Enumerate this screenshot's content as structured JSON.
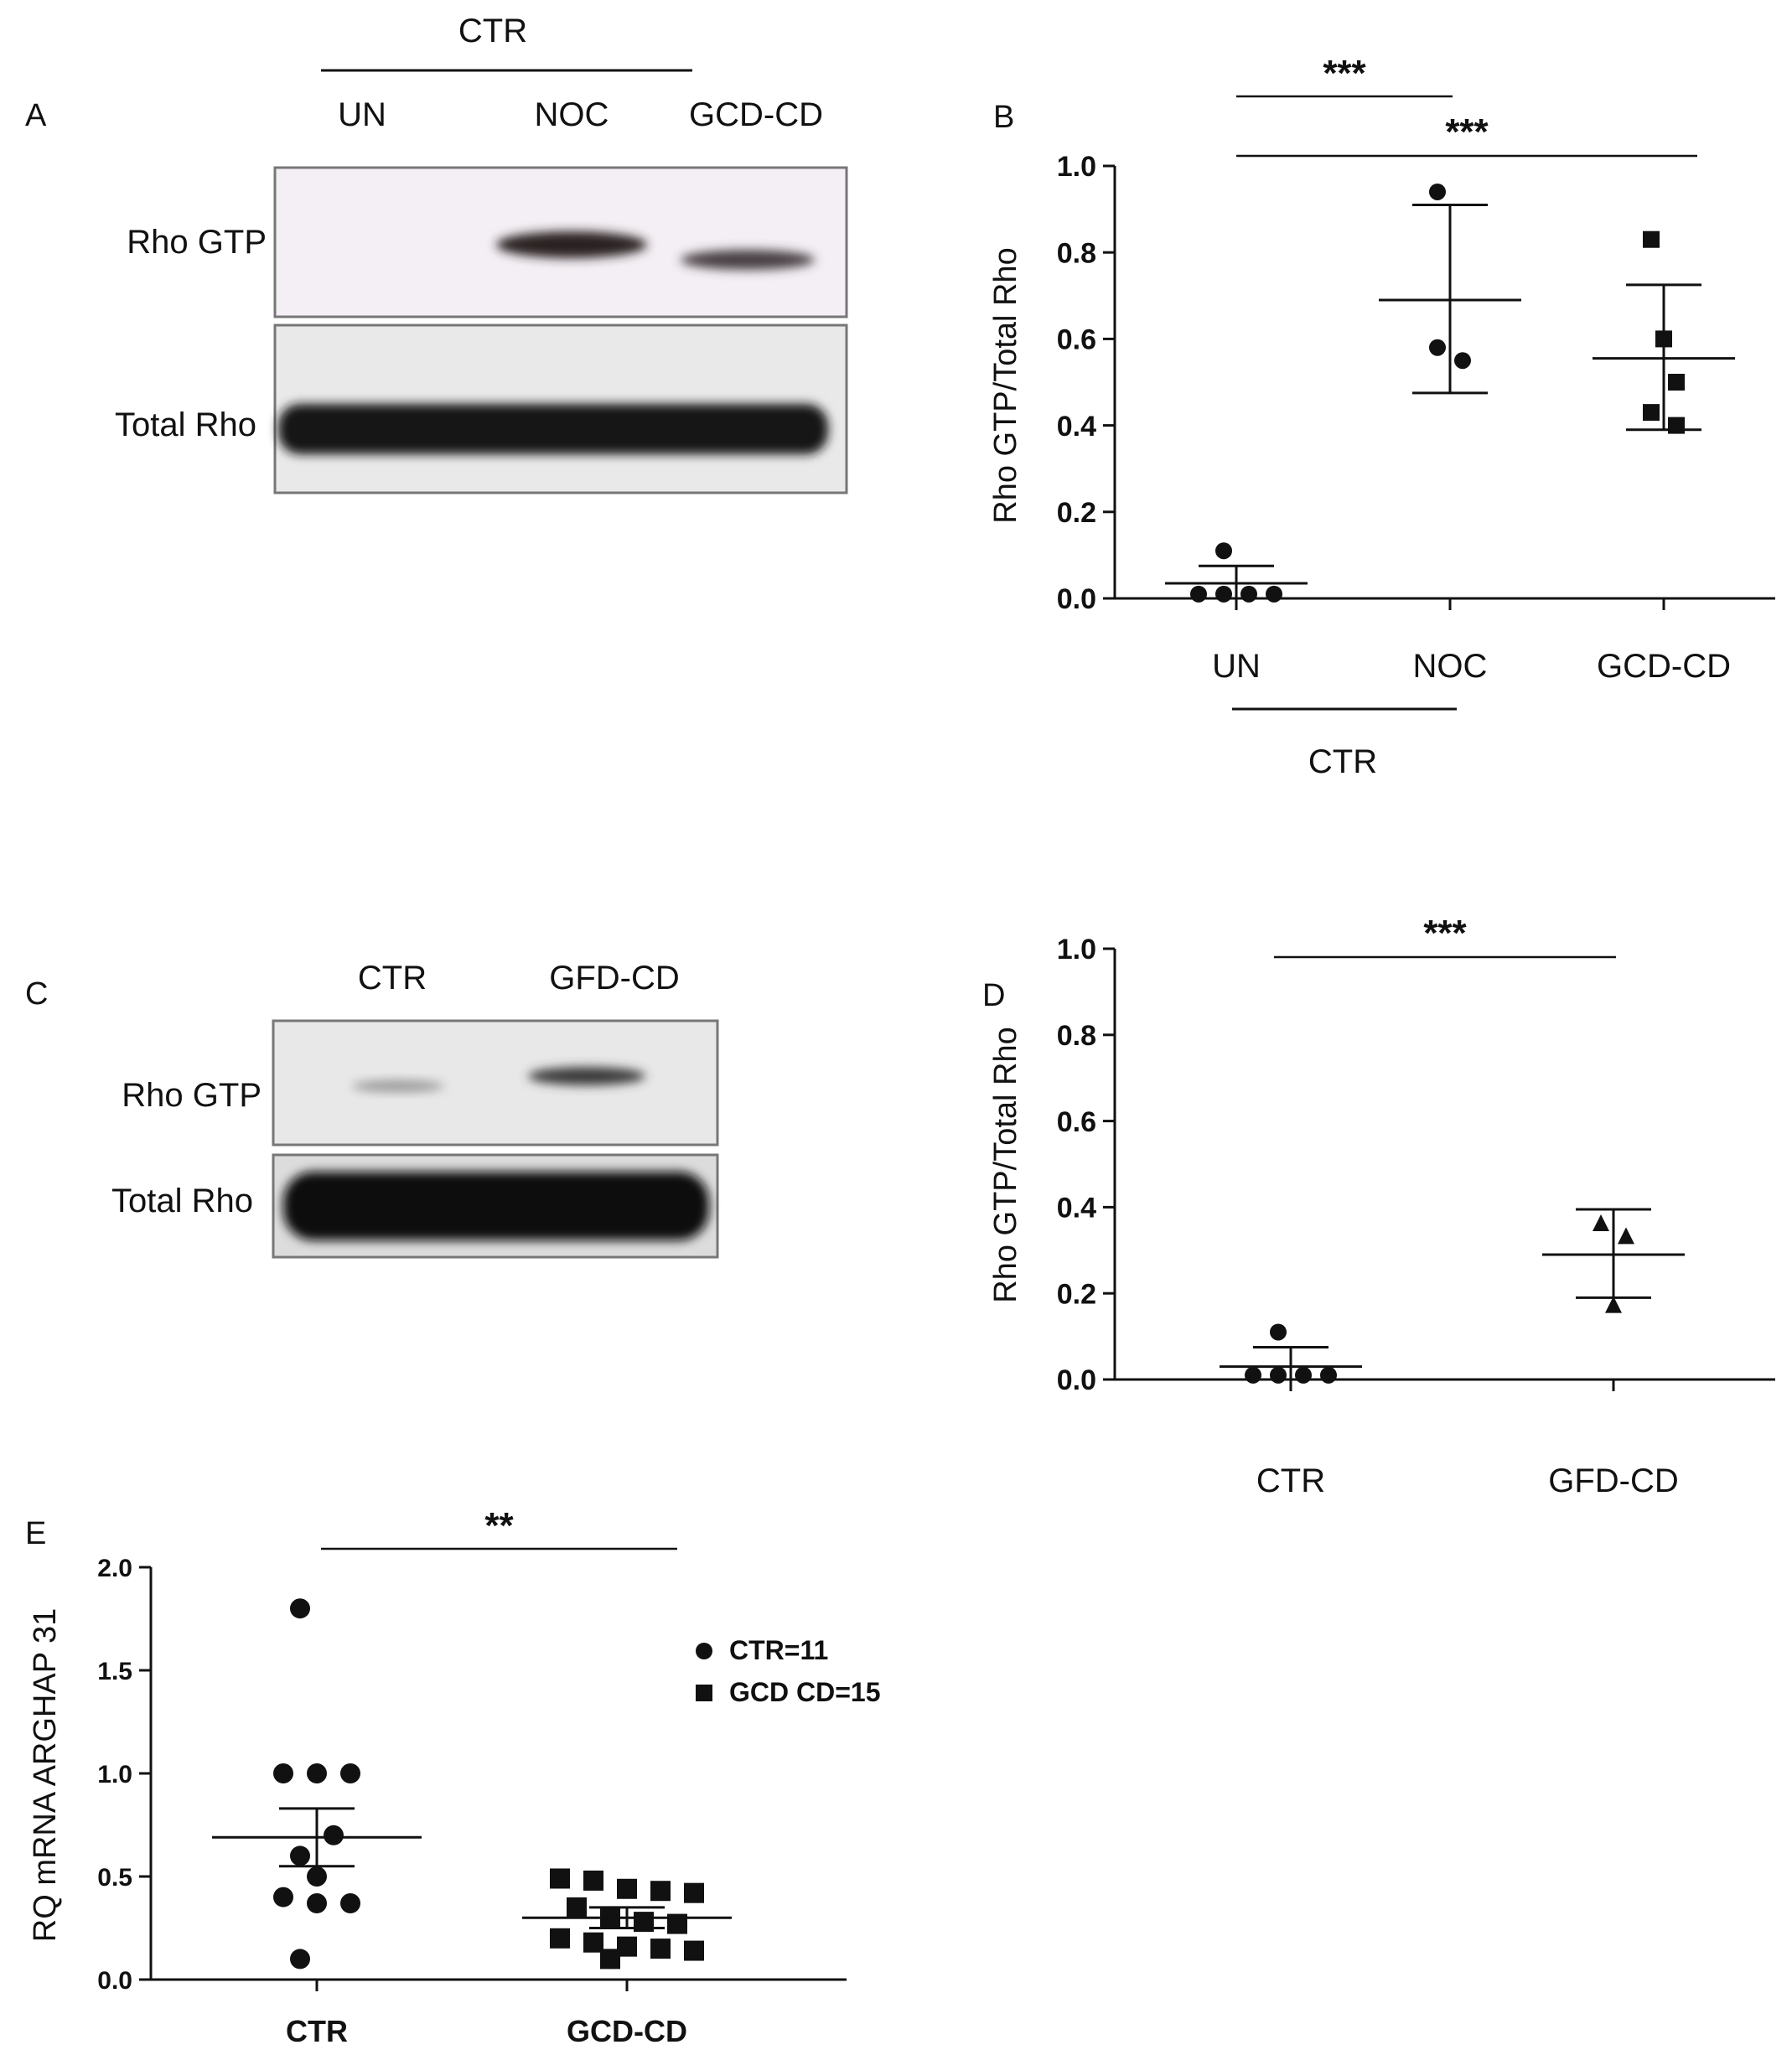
{
  "panels": {
    "A": {
      "letter": "A",
      "group_label": "CTR",
      "lanes": [
        "UN",
        "NOC",
        "GCD-CD"
      ],
      "rows": [
        "Rho GTP",
        "Total Rho"
      ]
    },
    "C": {
      "letter": "C",
      "lanes": [
        "CTR",
        "GFD-CD"
      ],
      "rows": [
        "Rho GTP",
        "Total Rho"
      ]
    }
  },
  "chart_data": [
    {
      "panel": "B",
      "type": "scatter",
      "ylabel": "Rho GTP/Total Rho",
      "ylim": [
        0,
        1.0
      ],
      "yticks": [
        "0.0",
        "0.2",
        "0.4",
        "0.6",
        "0.8",
        "1.0"
      ],
      "categories": [
        "UN",
        "NOC",
        "GCD-CD"
      ],
      "group_label": "CTR",
      "groups": [
        {
          "category": "UN",
          "marker": "circle",
          "points": [
            0.11,
            0.01,
            0.01,
            0.01,
            0.01
          ],
          "mean": 0.035,
          "upper": 0.075,
          "lower": 0.0
        },
        {
          "category": "NOC",
          "marker": "circle",
          "points": [
            0.94,
            0.58,
            0.55
          ],
          "mean": 0.69,
          "upper": 0.91,
          "lower": 0.475
        },
        {
          "category": "GCD-CD",
          "marker": "square",
          "points": [
            0.83,
            0.6,
            0.5,
            0.43,
            0.4
          ],
          "mean": 0.555,
          "upper": 0.725,
          "lower": 0.39
        }
      ],
      "significance": [
        {
          "text": "***",
          "from": 0,
          "to": 1
        },
        {
          "text": "***",
          "from": 0,
          "to": 2
        }
      ]
    },
    {
      "panel": "D",
      "type": "scatter",
      "ylabel": "Rho GTP/Total Rho",
      "ylim": [
        0,
        1.0
      ],
      "yticks": [
        "0.0",
        "0.2",
        "0.4",
        "0.6",
        "0.8",
        "1.0"
      ],
      "categories": [
        "CTR",
        "GFD-CD"
      ],
      "groups": [
        {
          "category": "CTR",
          "marker": "circle",
          "points": [
            0.11,
            0.01,
            0.01,
            0.01,
            0.01
          ],
          "mean": 0.03,
          "upper": 0.075,
          "lower": 0.0
        },
        {
          "category": "GFD-CD",
          "marker": "triangle",
          "points": [
            0.36,
            0.33,
            0.17
          ],
          "mean": 0.29,
          "upper": 0.395,
          "lower": 0.19
        }
      ],
      "significance": [
        {
          "text": "***",
          "from": 0,
          "to": 1
        }
      ]
    },
    {
      "panel": "E",
      "type": "scatter",
      "ylabel": "RQ mRNA ARGHAP 31",
      "ylim": [
        0,
        2.0
      ],
      "yticks": [
        "0.0",
        "0.5",
        "1.0",
        "1.5",
        "2.0"
      ],
      "categories": [
        "CTR",
        "GCD-CD"
      ],
      "legend": [
        "CTR=11",
        "GCD CD=15"
      ],
      "legend_position": "right",
      "groups": [
        {
          "category": "CTR",
          "marker": "circle",
          "points": [
            1.8,
            1.0,
            1.0,
            1.0,
            0.7,
            0.6,
            0.5,
            0.4,
            0.37,
            0.37,
            0.1
          ],
          "mean": 0.69,
          "upper": 0.83,
          "lower": 0.55
        },
        {
          "category": "GCD-CD",
          "marker": "square",
          "points": [
            0.48,
            0.49,
            0.44,
            0.43,
            0.42,
            0.35,
            0.3,
            0.28,
            0.27,
            0.2,
            0.18,
            0.16,
            0.15,
            0.14,
            0.1
          ],
          "mean": 0.3,
          "upper": 0.35,
          "lower": 0.25
        }
      ],
      "significance": [
        {
          "text": "**",
          "from": 0,
          "to": 1
        }
      ]
    }
  ]
}
